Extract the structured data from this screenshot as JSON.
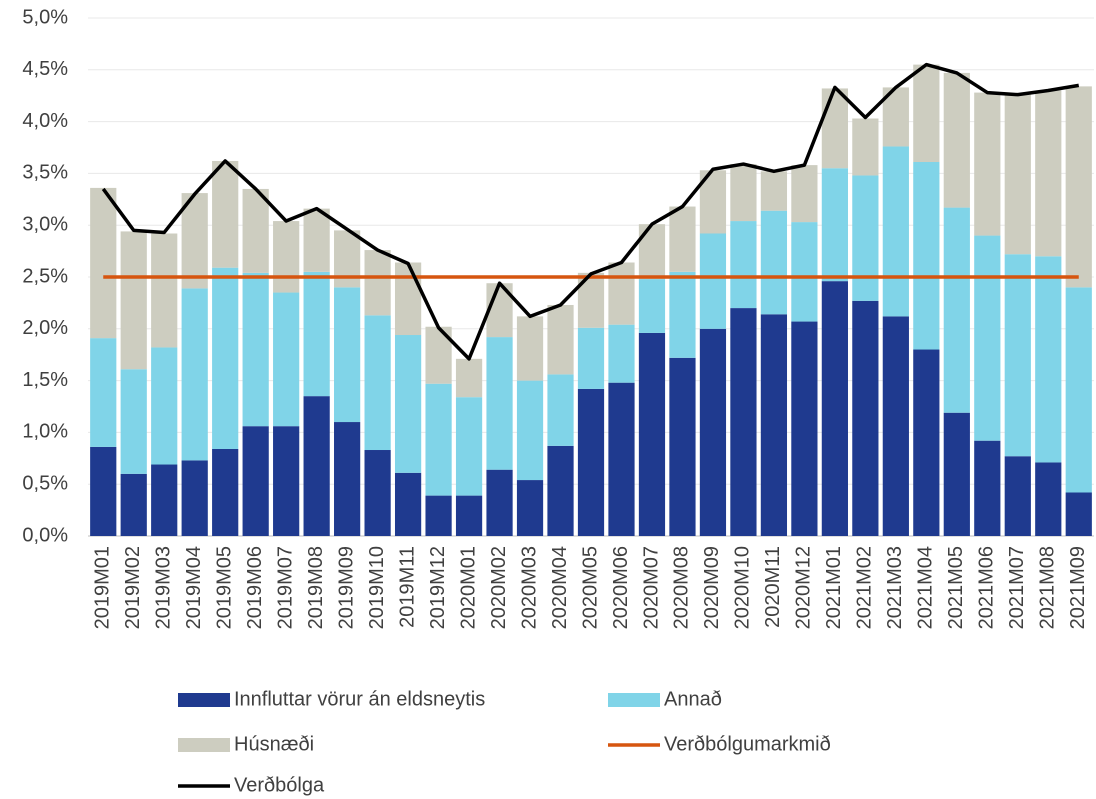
{
  "chart_data": {
    "type": "bar",
    "stacked": true,
    "categories": [
      "2019M01",
      "2019M02",
      "2019M03",
      "2019M04",
      "2019M05",
      "2019M06",
      "2019M07",
      "2019M08",
      "2019M09",
      "2019M10",
      "2019M11",
      "2019M12",
      "2020M01",
      "2020M02",
      "2020M03",
      "2020M04",
      "2020M05",
      "2020M06",
      "2020M07",
      "2020M08",
      "2020M09",
      "2020M10",
      "2020M11",
      "2020M12",
      "2021M01",
      "2021M02",
      "2021M03",
      "2021M04",
      "2021M05",
      "2021M06",
      "2021M07",
      "2021M08",
      "2021M09"
    ],
    "series": [
      {
        "name": "Innfluttar vörur án eldsneytis",
        "type": "bar",
        "color": "#1f3a8f",
        "values": [
          0.86,
          0.6,
          0.69,
          0.73,
          0.84,
          1.06,
          1.06,
          1.35,
          1.1,
          0.83,
          0.61,
          0.39,
          0.39,
          0.64,
          0.54,
          0.87,
          1.42,
          1.48,
          1.96,
          1.72,
          2.0,
          2.2,
          2.14,
          2.07,
          2.46,
          2.27,
          2.12,
          1.8,
          1.19,
          0.92,
          0.77,
          0.71,
          0.42
        ]
      },
      {
        "name": "Annað",
        "type": "bar",
        "color": "#80d4e8",
        "values": [
          1.05,
          1.01,
          1.13,
          1.66,
          1.75,
          1.48,
          1.29,
          1.2,
          1.3,
          1.3,
          1.33,
          1.08,
          0.95,
          1.28,
          0.96,
          0.69,
          0.59,
          0.56,
          0.52,
          0.83,
          0.92,
          0.84,
          1.0,
          0.96,
          1.09,
          1.21,
          1.64,
          1.81,
          1.98,
          1.98,
          1.95,
          1.99,
          1.98
        ]
      },
      {
        "name": "Húsnæði",
        "type": "bar",
        "color": "#cdcdc0",
        "values": [
          1.45,
          1.33,
          1.1,
          0.92,
          1.03,
          0.81,
          0.69,
          0.61,
          0.55,
          0.63,
          0.7,
          0.55,
          0.37,
          0.52,
          0.62,
          0.67,
          0.53,
          0.6,
          0.53,
          0.63,
          0.61,
          0.55,
          0.38,
          0.55,
          0.77,
          0.55,
          0.57,
          0.94,
          1.3,
          1.38,
          1.54,
          1.6,
          1.94
        ]
      },
      {
        "name": "Verðbólgumarkmið",
        "type": "line",
        "color": "#d6550f",
        "values": [
          2.5,
          2.5,
          2.5,
          2.5,
          2.5,
          2.5,
          2.5,
          2.5,
          2.5,
          2.5,
          2.5,
          2.5,
          2.5,
          2.5,
          2.5,
          2.5,
          2.5,
          2.5,
          2.5,
          2.5,
          2.5,
          2.5,
          2.5,
          2.5,
          2.5,
          2.5,
          2.5,
          2.5,
          2.5,
          2.5,
          2.5,
          2.5,
          2.5
        ]
      },
      {
        "name": "Verðbólga",
        "type": "line",
        "color": "#000000",
        "values": [
          3.35,
          2.95,
          2.93,
          3.3,
          3.62,
          3.35,
          3.04,
          3.16,
          2.96,
          2.76,
          2.63,
          2.01,
          1.71,
          2.44,
          2.12,
          2.23,
          2.53,
          2.64,
          3.01,
          3.18,
          3.54,
          3.59,
          3.52,
          3.58,
          4.33,
          4.04,
          4.33,
          4.55,
          4.47,
          4.28,
          4.26,
          4.3,
          4.35
        ]
      }
    ],
    "ylim": [
      0,
      5
    ],
    "yticks": [
      {
        "value": 0,
        "label": "0,0%"
      },
      {
        "value": 0.5,
        "label": "0,5%"
      },
      {
        "value": 1,
        "label": "1,0%"
      },
      {
        "value": 1.5,
        "label": "1,5%"
      },
      {
        "value": 2,
        "label": "2,0%"
      },
      {
        "value": 2.5,
        "label": "2,5%"
      },
      {
        "value": 3,
        "label": "3,0%"
      },
      {
        "value": 3.5,
        "label": "3,5%"
      },
      {
        "value": 4,
        "label": "4,0%"
      },
      {
        "value": 4.5,
        "label": "4,5%"
      },
      {
        "value": 5,
        "label": "5,0%"
      }
    ],
    "grid": true,
    "legend": "bottom"
  }
}
